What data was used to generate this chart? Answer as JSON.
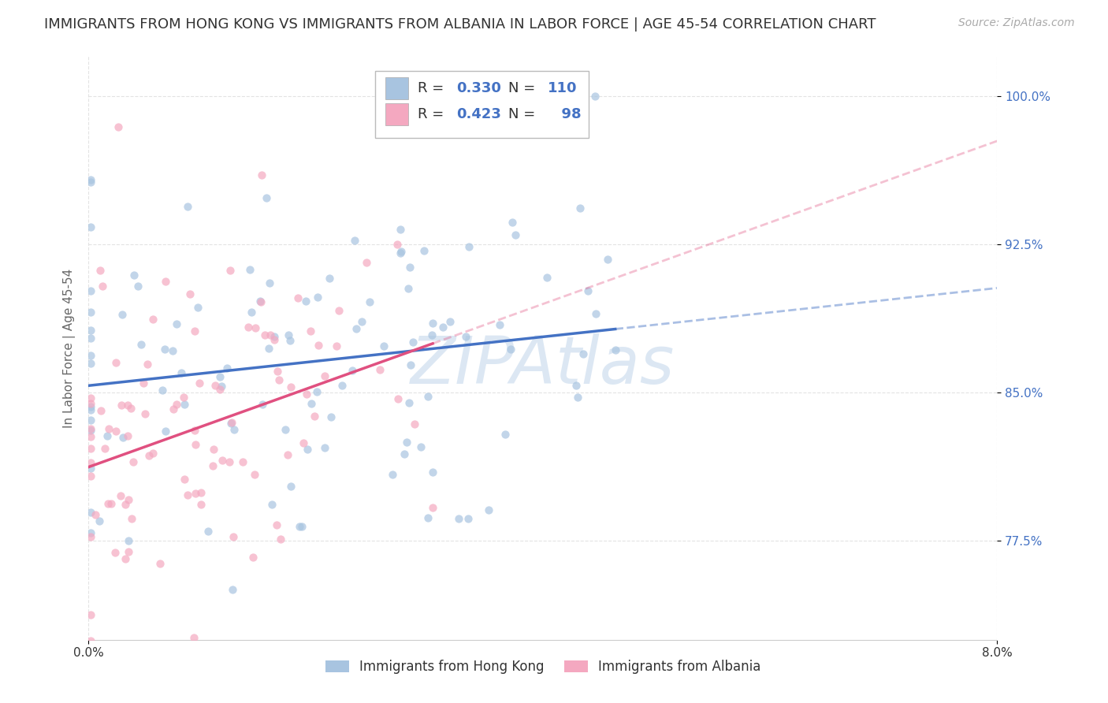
{
  "title": "IMMIGRANTS FROM HONG KONG VS IMMIGRANTS FROM ALBANIA IN LABOR FORCE | AGE 45-54 CORRELATION CHART",
  "source": "Source: ZipAtlas.com",
  "ylabel": "In Labor Force | Age 45-54",
  "xlim": [
    0.0,
    0.08
  ],
  "ylim": [
    0.725,
    1.02
  ],
  "xticks": [
    0.0,
    0.08
  ],
  "xticklabels": [
    "0.0%",
    "8.0%"
  ],
  "yticks": [
    0.775,
    0.85,
    0.925,
    1.0
  ],
  "yticklabels": [
    "77.5%",
    "85.0%",
    "92.5%",
    "100.0%"
  ],
  "R_hk": 0.33,
  "N_hk": 110,
  "R_alb": 0.423,
  "N_alb": 98,
  "color_hk": "#a8c4e0",
  "color_alb": "#f4a8c0",
  "color_line_hk": "#4472c4",
  "color_line_alb": "#e05080",
  "background_color": "#ffffff",
  "grid_color": "#dddddd",
  "title_color": "#333333",
  "title_fontsize": 13,
  "axis_label_color": "#666666",
  "tick_color_y": "#4472c4",
  "scatter_alpha": 0.7,
  "scatter_size": 55,
  "watermark_color": "#c5d8ec",
  "watermark_alpha": 0.6
}
